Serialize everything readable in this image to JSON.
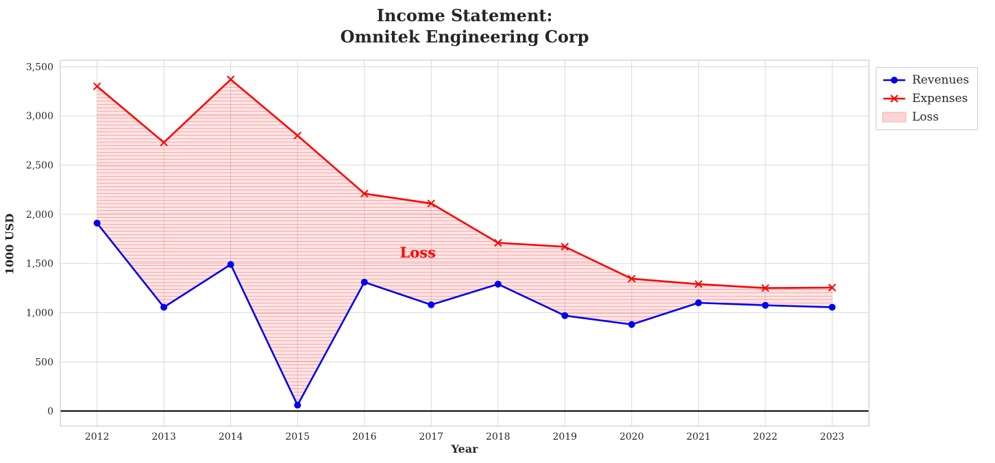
{
  "title_line1": "Income Statement:",
  "title_line2": "Omnitek Engineering Corp",
  "axis": {
    "xlabel": "Year",
    "ylabel": "1000 USD"
  },
  "chart_data": {
    "type": "line",
    "title": "Income Statement: Omnitek Engineering Corp",
    "xlabel": "Year",
    "ylabel": "1000 USD",
    "categories": [
      2012,
      2013,
      2014,
      2015,
      2016,
      2017,
      2018,
      2019,
      2020,
      2021,
      2022,
      2023
    ],
    "series": [
      {
        "name": "Revenues",
        "color": "#0000ee",
        "marker": "circle",
        "values": [
          1910,
          1055,
          1490,
          60,
          1310,
          1080,
          1290,
          970,
          880,
          1100,
          1075,
          1055
        ]
      },
      {
        "name": "Expenses",
        "color": "#ff0000",
        "marker": "x",
        "values": [
          3300,
          2730,
          3370,
          2800,
          2210,
          2110,
          1710,
          1670,
          1345,
          1290,
          1250,
          1255
        ]
      }
    ],
    "loss_area": {
      "label": "Loss",
      "between": [
        "Revenues",
        "Expenses"
      ],
      "fill": "#ff0000",
      "opacity": 0.1,
      "hatch": "horizontal"
    },
    "annotation": {
      "text": "Loss",
      "x": 2016.8,
      "y": 1560,
      "color": "#ff0000"
    },
    "zero_line": {
      "y": 0,
      "color": "#000000"
    },
    "ylim": [
      0,
      3500
    ],
    "yticks": [
      0,
      500,
      1000,
      1500,
      2000,
      2500,
      3000,
      3500
    ],
    "grid": true,
    "legend": {
      "position": "outside-top-right",
      "entries": [
        {
          "label": "Revenues",
          "type": "line-circle",
          "color": "#0000ee"
        },
        {
          "label": "Expenses",
          "type": "line-x",
          "color": "#ff0000"
        },
        {
          "label": "Loss",
          "type": "patch",
          "color": "#fbd4d4"
        }
      ]
    }
  }
}
